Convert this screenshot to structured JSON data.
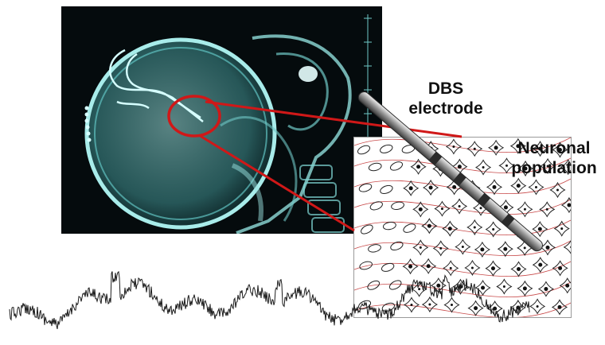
{
  "labels": {
    "electrode": "DBS\nelectrode",
    "population": "Neuronal\npopulation"
  },
  "colors": {
    "xray_bg": "#050b0d",
    "bone": "#7fd6d4",
    "highlight": "#d01818",
    "neuron_fill": "#111111",
    "field_lines": "#c84a4a",
    "signal": "#1a1a1a"
  },
  "icons": [
    "skull-xray-image",
    "dbs-electrode-probe",
    "neuron-population-diagram",
    "lfp-signal-trace"
  ]
}
